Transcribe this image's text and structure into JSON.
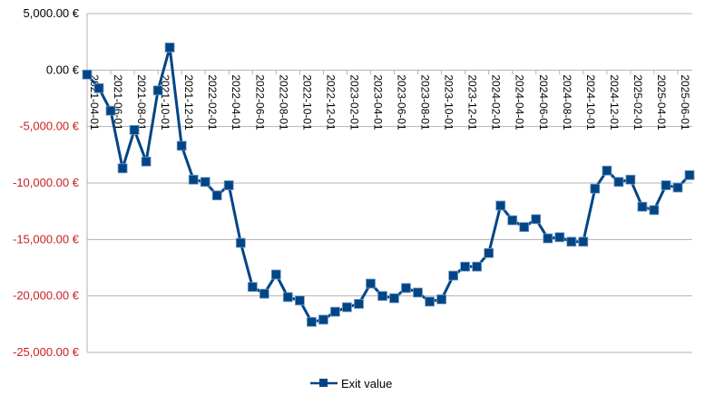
{
  "chart_data": {
    "type": "line",
    "title": "",
    "xlabel": "",
    "ylabel": "",
    "ylim": [
      -25000,
      5000
    ],
    "y_ticks": [
      5000,
      0,
      -5000,
      -10000,
      -15000,
      -20000,
      -25000
    ],
    "y_tick_labels": [
      "5,000.00 €",
      "0.00 €",
      "-5,000.00 €",
      "-10,000.00 €",
      "-15,000.00 €",
      "-20,000.00 €",
      "-25,000.00 €"
    ],
    "x_tick_labels": [
      "2021-04-01",
      "2021-06-01",
      "2021-08-01",
      "2021-10-01",
      "2021-12-01",
      "2022-02-01",
      "2022-04-01",
      "2022-06-01",
      "2022-08-01",
      "2022-10-01",
      "2022-12-01",
      "2023-02-01",
      "2023-04-01",
      "2023-06-01",
      "2023-08-01",
      "2023-10-01",
      "2023-12-01",
      "2024-02-01",
      "2024-04-01",
      "2024-06-01",
      "2024-08-01",
      "2024-10-01",
      "2024-12-01",
      "2025-02-01",
      "2025-04-01",
      "2025-06-01"
    ],
    "x": [
      "2021-04",
      "2021-05",
      "2021-06",
      "2021-07",
      "2021-08",
      "2021-09",
      "2021-10",
      "2021-11",
      "2021-12",
      "2022-01",
      "2022-02",
      "2022-03",
      "2022-04",
      "2022-05",
      "2022-06",
      "2022-07",
      "2022-08",
      "2022-09",
      "2022-10",
      "2022-11",
      "2022-12",
      "2023-01",
      "2023-02",
      "2023-03",
      "2023-04",
      "2023-05",
      "2023-06",
      "2023-07",
      "2023-08",
      "2023-09",
      "2023-10",
      "2023-11",
      "2023-12",
      "2024-01",
      "2024-02",
      "2024-03",
      "2024-04",
      "2024-05",
      "2024-06",
      "2024-07",
      "2024-08",
      "2024-09",
      "2024-10",
      "2024-11",
      "2024-12",
      "2025-01",
      "2025-02",
      "2025-03",
      "2025-04",
      "2025-05",
      "2025-06",
      "2025-07"
    ],
    "series": [
      {
        "name": "Exit value",
        "color": "#004586",
        "values": [
          -400,
          -1600,
          -3600,
          -8700,
          -5300,
          -8100,
          -1800,
          2000,
          -6700,
          -9700,
          -9900,
          -11100,
          -10200,
          -15300,
          -19200,
          -19800,
          -18100,
          -20100,
          -20400,
          -22300,
          -22100,
          -21400,
          -21000,
          -20700,
          -18900,
          -20000,
          -20200,
          -19300,
          -19700,
          -20500,
          -20300,
          -18200,
          -17400,
          -17400,
          -16200,
          -12000,
          -13300,
          -13900,
          -13200,
          -14900,
          -14800,
          -15200,
          -15200,
          -10500,
          -8900,
          -9900,
          -9700,
          -12100,
          -12400,
          -10200,
          -10400,
          -9300
        ]
      }
    ],
    "grid": true,
    "legend": "bottom-center",
    "negative_label_color": "#c9211e"
  }
}
